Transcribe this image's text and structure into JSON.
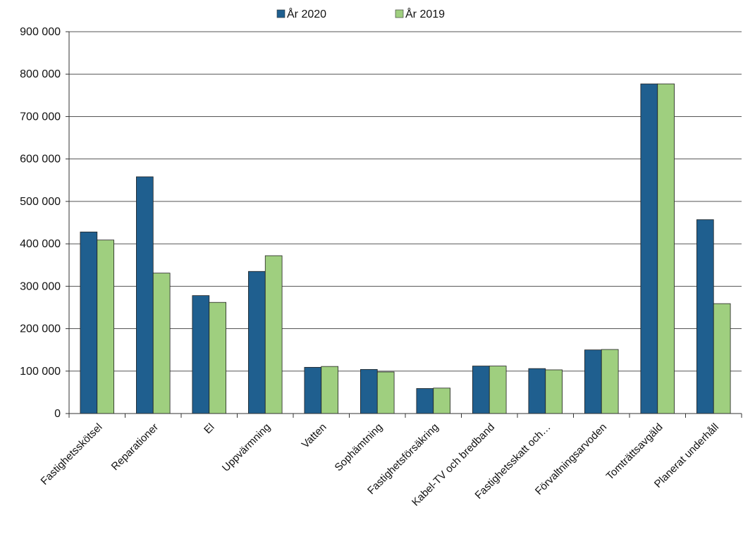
{
  "chart_data": {
    "type": "bar",
    "categories": [
      "Fastighetsskötsel",
      "Reparationer",
      "El",
      "Uppvärmning",
      "Vatten",
      "Sophämtning",
      "Fastighetsförsäkring",
      "Kabel-TV och bredband",
      "Fastighetsskatt och…",
      "Förvaltningsarvoden",
      "Tomträttsavgäld",
      "Planerat underhåll"
    ],
    "series": [
      {
        "name": "År 2020",
        "color": "#1f5f8f",
        "values": [
          428000,
          558000,
          278000,
          335000,
          109000,
          104000,
          59000,
          112000,
          106000,
          150000,
          777000,
          457000
        ]
      },
      {
        "name": "År 2019",
        "color": "#9fcf7f",
        "values": [
          409000,
          331000,
          262000,
          372000,
          111000,
          98000,
          60000,
          112000,
          103000,
          151000,
          777000,
          259000
        ]
      }
    ],
    "yticks": [
      "0",
      "100 000",
      "200 000",
      "300 000",
      "400 000",
      "500 000",
      "600 000",
      "700 000",
      "800 000",
      "900 000"
    ],
    "ylim": [
      0,
      900000
    ],
    "grid": true,
    "legend": "top-center",
    "title": "",
    "xlabel": "",
    "ylabel": ""
  }
}
